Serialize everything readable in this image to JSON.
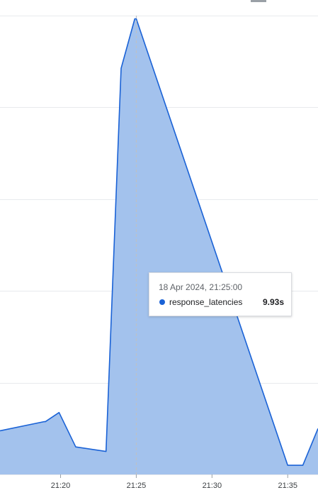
{
  "tooltip": {
    "timestamp": "18 Apr 2024, 21:25:00",
    "series_name": "response_latencies",
    "value": "9.93s"
  },
  "colors": {
    "series_line": "#1a62d6",
    "series_fill": "#a3c2ed",
    "grid": "#e8eaed",
    "axis_text": "#3c4043",
    "cursor": "#bdc1c6"
  },
  "chart_data": {
    "type": "area",
    "x_ticks": [
      "21:20",
      "21:25",
      "21:30",
      "21:35"
    ],
    "x_range_minutes": [
      16,
      37
    ],
    "y_range_seconds": [
      0,
      10
    ],
    "y_gridlines_seconds": [
      2,
      4,
      6,
      8,
      10
    ],
    "y_tick_labels_visible": false,
    "cursor_time": "21:25",
    "series": [
      {
        "name": "response_latencies",
        "points": [
          {
            "t": 16.0,
            "v": 0.95
          },
          {
            "t": 18.9,
            "v": 1.15
          },
          {
            "t": 19.0,
            "v": 1.15
          },
          {
            "t": 19.9,
            "v": 1.35
          },
          {
            "t": 21.0,
            "v": 0.6
          },
          {
            "t": 23.0,
            "v": 0.5
          },
          {
            "t": 24.0,
            "v": 8.85
          },
          {
            "t": 24.9,
            "v": 9.93
          },
          {
            "t": 25.0,
            "v": 9.93
          },
          {
            "t": 35.0,
            "v": 0.2
          },
          {
            "t": 36.0,
            "v": 0.2
          },
          {
            "t": 37.0,
            "v": 1.0
          }
        ]
      }
    ]
  }
}
